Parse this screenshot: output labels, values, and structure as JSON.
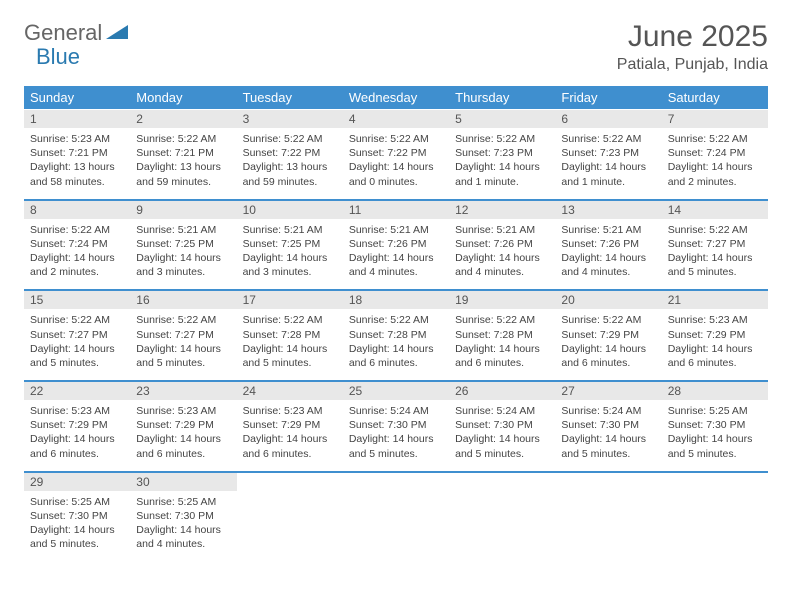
{
  "logo": {
    "text1": "General",
    "text2": "Blue",
    "color": "#2a7ab0"
  },
  "title": "June 2025",
  "location": "Patiala, Punjab, India",
  "colors": {
    "header_bg": "#3f8fcf",
    "daynum_bg": "#e8e8e8",
    "text": "#444"
  },
  "day_headers": [
    "Sunday",
    "Monday",
    "Tuesday",
    "Wednesday",
    "Thursday",
    "Friday",
    "Saturday"
  ],
  "weeks": [
    [
      {
        "n": "1",
        "sr": "Sunrise: 5:23 AM",
        "ss": "Sunset: 7:21 PM",
        "dl": "Daylight: 13 hours and 58 minutes."
      },
      {
        "n": "2",
        "sr": "Sunrise: 5:22 AM",
        "ss": "Sunset: 7:21 PM",
        "dl": "Daylight: 13 hours and 59 minutes."
      },
      {
        "n": "3",
        "sr": "Sunrise: 5:22 AM",
        "ss": "Sunset: 7:22 PM",
        "dl": "Daylight: 13 hours and 59 minutes."
      },
      {
        "n": "4",
        "sr": "Sunrise: 5:22 AM",
        "ss": "Sunset: 7:22 PM",
        "dl": "Daylight: 14 hours and 0 minutes."
      },
      {
        "n": "5",
        "sr": "Sunrise: 5:22 AM",
        "ss": "Sunset: 7:23 PM",
        "dl": "Daylight: 14 hours and 1 minute."
      },
      {
        "n": "6",
        "sr": "Sunrise: 5:22 AM",
        "ss": "Sunset: 7:23 PM",
        "dl": "Daylight: 14 hours and 1 minute."
      },
      {
        "n": "7",
        "sr": "Sunrise: 5:22 AM",
        "ss": "Sunset: 7:24 PM",
        "dl": "Daylight: 14 hours and 2 minutes."
      }
    ],
    [
      {
        "n": "8",
        "sr": "Sunrise: 5:22 AM",
        "ss": "Sunset: 7:24 PM",
        "dl": "Daylight: 14 hours and 2 minutes."
      },
      {
        "n": "9",
        "sr": "Sunrise: 5:21 AM",
        "ss": "Sunset: 7:25 PM",
        "dl": "Daylight: 14 hours and 3 minutes."
      },
      {
        "n": "10",
        "sr": "Sunrise: 5:21 AM",
        "ss": "Sunset: 7:25 PM",
        "dl": "Daylight: 14 hours and 3 minutes."
      },
      {
        "n": "11",
        "sr": "Sunrise: 5:21 AM",
        "ss": "Sunset: 7:26 PM",
        "dl": "Daylight: 14 hours and 4 minutes."
      },
      {
        "n": "12",
        "sr": "Sunrise: 5:21 AM",
        "ss": "Sunset: 7:26 PM",
        "dl": "Daylight: 14 hours and 4 minutes."
      },
      {
        "n": "13",
        "sr": "Sunrise: 5:21 AM",
        "ss": "Sunset: 7:26 PM",
        "dl": "Daylight: 14 hours and 4 minutes."
      },
      {
        "n": "14",
        "sr": "Sunrise: 5:22 AM",
        "ss": "Sunset: 7:27 PM",
        "dl": "Daylight: 14 hours and 5 minutes."
      }
    ],
    [
      {
        "n": "15",
        "sr": "Sunrise: 5:22 AM",
        "ss": "Sunset: 7:27 PM",
        "dl": "Daylight: 14 hours and 5 minutes."
      },
      {
        "n": "16",
        "sr": "Sunrise: 5:22 AM",
        "ss": "Sunset: 7:27 PM",
        "dl": "Daylight: 14 hours and 5 minutes."
      },
      {
        "n": "17",
        "sr": "Sunrise: 5:22 AM",
        "ss": "Sunset: 7:28 PM",
        "dl": "Daylight: 14 hours and 5 minutes."
      },
      {
        "n": "18",
        "sr": "Sunrise: 5:22 AM",
        "ss": "Sunset: 7:28 PM",
        "dl": "Daylight: 14 hours and 6 minutes."
      },
      {
        "n": "19",
        "sr": "Sunrise: 5:22 AM",
        "ss": "Sunset: 7:28 PM",
        "dl": "Daylight: 14 hours and 6 minutes."
      },
      {
        "n": "20",
        "sr": "Sunrise: 5:22 AM",
        "ss": "Sunset: 7:29 PM",
        "dl": "Daylight: 14 hours and 6 minutes."
      },
      {
        "n": "21",
        "sr": "Sunrise: 5:23 AM",
        "ss": "Sunset: 7:29 PM",
        "dl": "Daylight: 14 hours and 6 minutes."
      }
    ],
    [
      {
        "n": "22",
        "sr": "Sunrise: 5:23 AM",
        "ss": "Sunset: 7:29 PM",
        "dl": "Daylight: 14 hours and 6 minutes."
      },
      {
        "n": "23",
        "sr": "Sunrise: 5:23 AM",
        "ss": "Sunset: 7:29 PM",
        "dl": "Daylight: 14 hours and 6 minutes."
      },
      {
        "n": "24",
        "sr": "Sunrise: 5:23 AM",
        "ss": "Sunset: 7:29 PM",
        "dl": "Daylight: 14 hours and 6 minutes."
      },
      {
        "n": "25",
        "sr": "Sunrise: 5:24 AM",
        "ss": "Sunset: 7:30 PM",
        "dl": "Daylight: 14 hours and 5 minutes."
      },
      {
        "n": "26",
        "sr": "Sunrise: 5:24 AM",
        "ss": "Sunset: 7:30 PM",
        "dl": "Daylight: 14 hours and 5 minutes."
      },
      {
        "n": "27",
        "sr": "Sunrise: 5:24 AM",
        "ss": "Sunset: 7:30 PM",
        "dl": "Daylight: 14 hours and 5 minutes."
      },
      {
        "n": "28",
        "sr": "Sunrise: 5:25 AM",
        "ss": "Sunset: 7:30 PM",
        "dl": "Daylight: 14 hours and 5 minutes."
      }
    ],
    [
      {
        "n": "29",
        "sr": "Sunrise: 5:25 AM",
        "ss": "Sunset: 7:30 PM",
        "dl": "Daylight: 14 hours and 5 minutes."
      },
      {
        "n": "30",
        "sr": "Sunrise: 5:25 AM",
        "ss": "Sunset: 7:30 PM",
        "dl": "Daylight: 14 hours and 4 minutes."
      },
      null,
      null,
      null,
      null,
      null
    ]
  ]
}
